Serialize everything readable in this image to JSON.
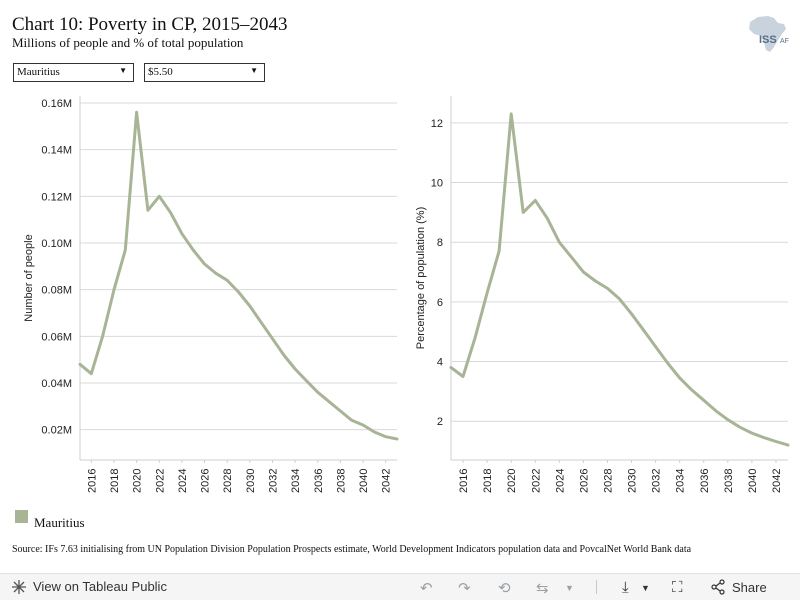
{
  "header": {
    "title": "Chart 10: Poverty in CP, 2015–2043",
    "subtitle": "Millions of people and % of total population",
    "logo_text_main": "ISS",
    "logo_text_sub": "AF"
  },
  "filters": {
    "country_value": "Mauritius",
    "poverty_line_value": "$5.50"
  },
  "legend": {
    "label": "Mauritius",
    "color": "#a8b496"
  },
  "source": "Source: IFs 7.63 initialising from UN Population Division Population Prospects estimate, World Development Indicators population data and PovcalNet World Bank data",
  "footer": {
    "view_label": "View on Tableau Public",
    "share_label": "Share",
    "icons": [
      "undo-icon",
      "redo-icon",
      "revert-icon",
      "refresh-icon",
      "download-icon",
      "fullscreen-icon",
      "share-icon"
    ]
  },
  "chart_data": [
    {
      "type": "line",
      "title": "",
      "xlabel": "",
      "ylabel": "Number of people",
      "xlim": [
        2015,
        2043
      ],
      "ylim": [
        0.007,
        0.163
      ],
      "x_ticks": [
        2016,
        2018,
        2020,
        2022,
        2024,
        2026,
        2028,
        2030,
        2032,
        2034,
        2036,
        2038,
        2040,
        2042
      ],
      "y_ticks": [
        0.02,
        0.04,
        0.06,
        0.08,
        0.1,
        0.12,
        0.14,
        0.16
      ],
      "y_tick_labels": [
        "0.02M",
        "0.04M",
        "0.06M",
        "0.08M",
        "0.10M",
        "0.12M",
        "0.14M",
        "0.16M"
      ],
      "grid": true,
      "series": [
        {
          "name": "Mauritius",
          "color": "#a8b496",
          "x": [
            2015,
            2016,
            2017,
            2018,
            2019,
            2020,
            2021,
            2022,
            2023,
            2024,
            2025,
            2026,
            2027,
            2028,
            2029,
            2030,
            2031,
            2032,
            2033,
            2034,
            2035,
            2036,
            2037,
            2038,
            2039,
            2040,
            2041,
            2042,
            2043
          ],
          "y": [
            0.048,
            0.044,
            0.06,
            0.08,
            0.097,
            0.156,
            0.114,
            0.12,
            0.113,
            0.104,
            0.097,
            0.091,
            0.087,
            0.084,
            0.079,
            0.073,
            0.066,
            0.059,
            0.052,
            0.046,
            0.041,
            0.036,
            0.032,
            0.028,
            0.024,
            0.022,
            0.019,
            0.017,
            0.016
          ]
        }
      ]
    },
    {
      "type": "line",
      "title": "",
      "xlabel": "",
      "ylabel": "Percentage of population (%)",
      "xlim": [
        2015,
        2043
      ],
      "ylim": [
        0.7,
        12.9
      ],
      "x_ticks": [
        2016,
        2018,
        2020,
        2022,
        2024,
        2026,
        2028,
        2030,
        2032,
        2034,
        2036,
        2038,
        2040,
        2042
      ],
      "y_ticks": [
        2,
        4,
        6,
        8,
        10,
        12
      ],
      "y_tick_labels": [
        "2",
        "4",
        "6",
        "8",
        "10",
        "12"
      ],
      "grid": true,
      "series": [
        {
          "name": "Mauritius",
          "color": "#a8b496",
          "x": [
            2015,
            2016,
            2017,
            2018,
            2019,
            2020,
            2021,
            2022,
            2023,
            2024,
            2025,
            2026,
            2027,
            2028,
            2029,
            2030,
            2031,
            2032,
            2033,
            2034,
            2035,
            2036,
            2037,
            2038,
            2039,
            2040,
            2041,
            2042,
            2043
          ],
          "y": [
            3.8,
            3.5,
            4.8,
            6.3,
            7.7,
            12.3,
            9.0,
            9.4,
            8.8,
            8.0,
            7.5,
            7.0,
            6.7,
            6.45,
            6.1,
            5.6,
            5.05,
            4.5,
            3.95,
            3.45,
            3.05,
            2.7,
            2.35,
            2.05,
            1.8,
            1.6,
            1.45,
            1.32,
            1.2
          ]
        }
      ]
    }
  ]
}
